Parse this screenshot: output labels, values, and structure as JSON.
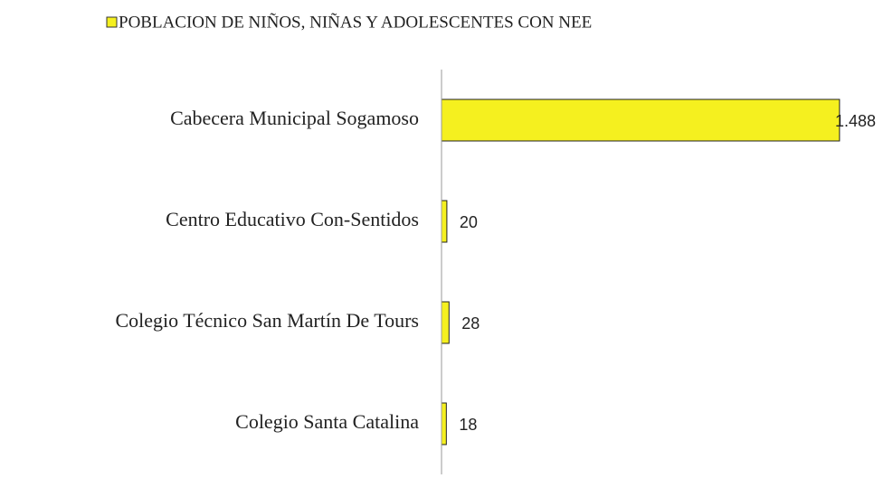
{
  "chart_data": {
    "type": "bar",
    "orientation": "horizontal",
    "categories": [
      "Cabecera Municipal Sogamoso",
      "Centro Educativo Con-Sentidos",
      "Colegio Técnico San Martín De Tours",
      "Colegio Santa Catalina"
    ],
    "series": [
      {
        "name": "POBLACION  DE NIÑOS, NIÑAS Y ADOLESCENTES CON NEE",
        "color": "#f5f01f",
        "values": [
          1488,
          20,
          28,
          18
        ],
        "value_labels": [
          "1.488",
          "20",
          "28",
          "18"
        ]
      }
    ],
    "xlim": [
      0,
      1600
    ],
    "legend": "top"
  }
}
